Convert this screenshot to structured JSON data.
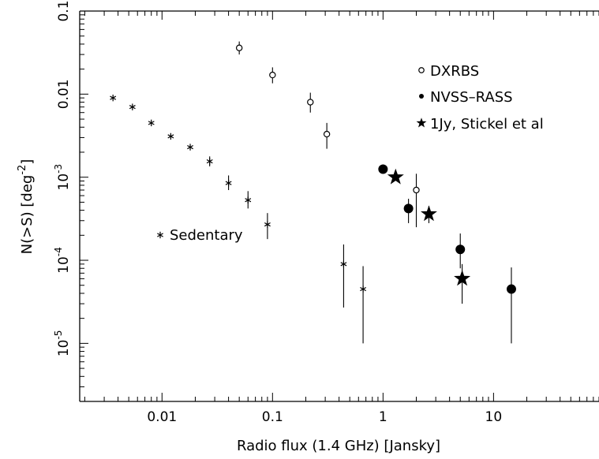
{
  "chart_data": {
    "type": "scatter",
    "xlabel": "Radio flux (1.4 GHz) [Jansky]",
    "ylabel": "N(>S) [deg",
    "ylabel_sup": "-2",
    "ylabel_close": "]",
    "x_scale": "log",
    "y_scale": "log",
    "xlim": [
      0.0018,
      90
    ],
    "ylim": [
      2e-06,
      0.1
    ],
    "x_tick_labels": [
      {
        "value": 0.01,
        "label": "0.01"
      },
      {
        "value": 0.1,
        "label": "0.1"
      },
      {
        "value": 1,
        "label": "1"
      },
      {
        "value": 10,
        "label": "10"
      }
    ],
    "y_tick_labels": [
      {
        "value": 0.1,
        "base": "0.1",
        "sup": ""
      },
      {
        "value": 0.01,
        "base": "0.01",
        "sup": ""
      },
      {
        "value": 0.001,
        "base": "10",
        "sup": "-3"
      },
      {
        "value": 0.0001,
        "base": "10",
        "sup": "-4"
      },
      {
        "value": 1e-05,
        "base": "10",
        "sup": "-5"
      }
    ],
    "series": [
      {
        "name": "Sedentary",
        "marker": "asterisk",
        "points": [
          {
            "x": 0.0036,
            "y": 0.009,
            "ylo": 0.009,
            "yhi": 0.009
          },
          {
            "x": 0.0054,
            "y": 0.007,
            "ylo": 0.007,
            "yhi": 0.007
          },
          {
            "x": 0.008,
            "y": 0.0045,
            "ylo": 0.0045,
            "yhi": 0.0045
          },
          {
            "x": 0.012,
            "y": 0.0031,
            "ylo": 0.0031,
            "yhi": 0.0031
          },
          {
            "x": 0.018,
            "y": 0.0023,
            "ylo": 0.0023,
            "yhi": 0.0023
          },
          {
            "x": 0.027,
            "y": 0.00155,
            "ylo": 0.00135,
            "yhi": 0.00178
          },
          {
            "x": 0.04,
            "y": 0.00085,
            "ylo": 0.0007,
            "yhi": 0.00105
          },
          {
            "x": 0.06,
            "y": 0.00053,
            "ylo": 0.00042,
            "yhi": 0.00068
          },
          {
            "x": 0.09,
            "y": 0.00027,
            "ylo": 0.00018,
            "yhi": 0.00037
          },
          {
            "x": 0.44,
            "y": 9e-05,
            "ylo": 2.7e-05,
            "yhi": 0.000155
          },
          {
            "x": 0.66,
            "y": 4.5e-05,
            "ylo": 1e-05,
            "yhi": 8.5e-05
          }
        ]
      },
      {
        "name": "DXRBS",
        "marker": "open-circle",
        "points": [
          {
            "x": 0.05,
            "y": 0.036,
            "ylo": 0.03,
            "yhi": 0.043
          },
          {
            "x": 0.1,
            "y": 0.017,
            "ylo": 0.0135,
            "yhi": 0.021
          },
          {
            "x": 0.22,
            "y": 0.008,
            "ylo": 0.006,
            "yhi": 0.0104
          },
          {
            "x": 0.31,
            "y": 0.0033,
            "ylo": 0.0022,
            "yhi": 0.0045
          },
          {
            "x": 2.0,
            "y": 0.0007,
            "ylo": 0.00025,
            "yhi": 0.0011
          }
        ]
      },
      {
        "name": "NVSS–RASS",
        "marker": "filled-circle",
        "points": [
          {
            "x": 1.0,
            "y": 0.00125,
            "ylo": 0.00125,
            "yhi": 0.00125
          },
          {
            "x": 1.7,
            "y": 0.00042,
            "ylo": 0.00028,
            "yhi": 0.00055
          },
          {
            "x": 5.0,
            "y": 0.000135,
            "ylo": 8e-05,
            "yhi": 0.00021
          },
          {
            "x": 14.5,
            "y": 4.5e-05,
            "ylo": 1e-05,
            "yhi": 8.2e-05
          }
        ]
      },
      {
        "name": "1Jy, Stickel et al",
        "marker": "filled-star",
        "points": [
          {
            "x": 1.3,
            "y": 0.001,
            "ylo": 0.001,
            "yhi": 0.001
          },
          {
            "x": 2.6,
            "y": 0.00036,
            "ylo": 0.00028,
            "yhi": 0.00045
          },
          {
            "x": 5.2,
            "y": 6e-05,
            "ylo": 3e-05,
            "yhi": 9e-05
          }
        ]
      }
    ],
    "legend": {
      "placement": "top-right",
      "entries": [
        {
          "marker": "open-circle",
          "label": "DXRBS"
        },
        {
          "marker": "filled-circle",
          "label": "NVSS–RASS"
        },
        {
          "marker": "filled-star",
          "label": "1Jy, Stickel et al"
        }
      ]
    },
    "annotations": [
      {
        "marker": "asterisk",
        "label": "Sedentary",
        "x": 0.01,
        "y": 0.0002
      }
    ]
  }
}
